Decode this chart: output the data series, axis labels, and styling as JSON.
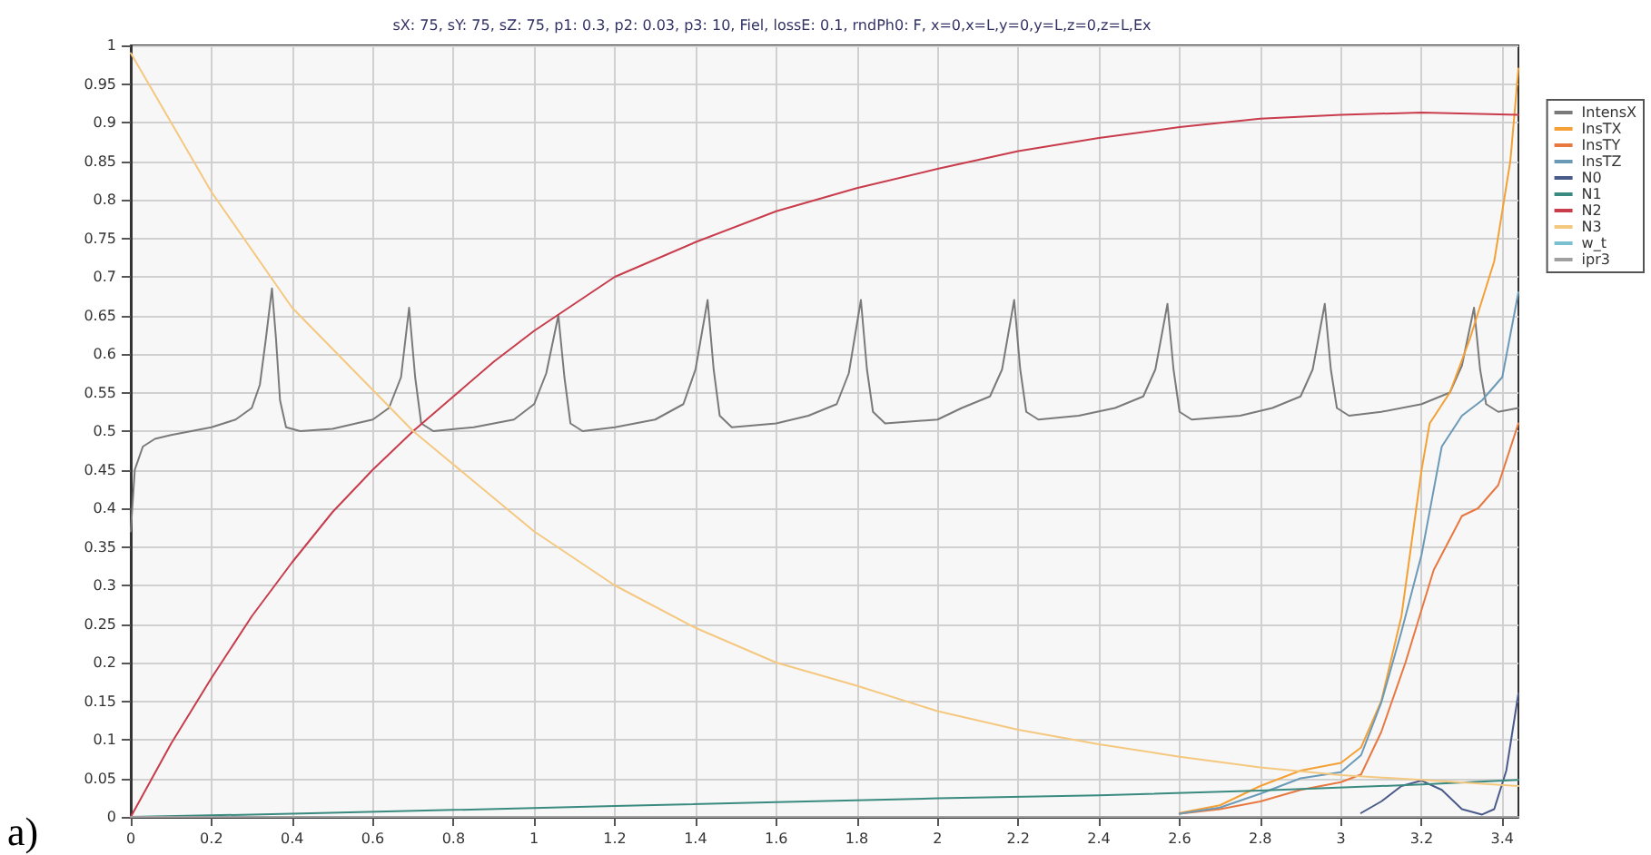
{
  "chart_data": {
    "type": "line",
    "title": "sX: 75, sY: 75, sZ: 75, p1: 0.3, p2: 0.03, p3: 10, Fiel, lossE: 0.1, rndPh0: F, x=0,x=L,y=0,y=L,z=0,z=L,Ex",
    "annotations": [
      "a)"
    ],
    "xlim": [
      0,
      3.44
    ],
    "ylim": [
      0,
      1
    ],
    "xticks": [
      0,
      0.2,
      0.4,
      0.6,
      0.8,
      1,
      1.2,
      1.4,
      1.6,
      1.8,
      2,
      2.2,
      2.4,
      2.6,
      2.8,
      3,
      3.2,
      3.4
    ],
    "yticks": [
      0,
      0.05,
      0.1,
      0.15,
      0.2,
      0.25,
      0.3,
      0.35,
      0.4,
      0.45,
      0.5,
      0.55,
      0.6,
      0.65,
      0.7,
      0.75,
      0.8,
      0.85,
      0.9,
      0.95,
      1
    ],
    "grid": true,
    "legend": "top right",
    "marker": "none",
    "line_style": "solid",
    "series": [
      {
        "name": "IntensX",
        "color": "#7a7a7a",
        "x": [
          0,
          0.01,
          0.03,
          0.06,
          0.1,
          0.2,
          0.26,
          0.3,
          0.32,
          0.335,
          0.35,
          0.36,
          0.37,
          0.385,
          0.42,
          0.5,
          0.6,
          0.64,
          0.67,
          0.69,
          0.705,
          0.72,
          0.75,
          0.85,
          0.95,
          1.0,
          1.03,
          1.06,
          1.075,
          1.09,
          1.12,
          1.2,
          1.3,
          1.37,
          1.4,
          1.43,
          1.445,
          1.46,
          1.49,
          1.6,
          1.68,
          1.75,
          1.78,
          1.81,
          1.825,
          1.84,
          1.87,
          2.0,
          2.06,
          2.13,
          2.16,
          2.19,
          2.205,
          2.22,
          2.25,
          2.35,
          2.44,
          2.51,
          2.54,
          2.57,
          2.585,
          2.6,
          2.63,
          2.75,
          2.83,
          2.9,
          2.93,
          2.96,
          2.975,
          2.99,
          3.02,
          3.1,
          3.2,
          3.27,
          3.3,
          3.33,
          3.345,
          3.36,
          3.39,
          3.44
        ],
        "values": [
          0.37,
          0.45,
          0.48,
          0.49,
          0.495,
          0.505,
          0.515,
          0.53,
          0.56,
          0.62,
          0.685,
          0.62,
          0.54,
          0.505,
          0.5,
          0.503,
          0.515,
          0.53,
          0.57,
          0.66,
          0.57,
          0.51,
          0.5,
          0.505,
          0.515,
          0.535,
          0.575,
          0.65,
          0.57,
          0.51,
          0.5,
          0.505,
          0.515,
          0.535,
          0.58,
          0.67,
          0.58,
          0.52,
          0.505,
          0.51,
          0.52,
          0.535,
          0.575,
          0.67,
          0.58,
          0.525,
          0.51,
          0.515,
          0.53,
          0.545,
          0.58,
          0.67,
          0.58,
          0.525,
          0.515,
          0.52,
          0.53,
          0.545,
          0.58,
          0.665,
          0.58,
          0.525,
          0.515,
          0.52,
          0.53,
          0.545,
          0.58,
          0.665,
          0.58,
          0.53,
          0.52,
          0.525,
          0.535,
          0.55,
          0.585,
          0.66,
          0.58,
          0.535,
          0.525,
          0.53
        ]
      },
      {
        "name": "InsTX",
        "color": "#f4a035",
        "x": [
          2.6,
          2.7,
          2.8,
          2.9,
          3.0,
          3.05,
          3.1,
          3.15,
          3.2,
          3.22,
          3.27,
          3.32,
          3.38,
          3.42,
          3.44
        ],
        "values": [
          0.005,
          0.015,
          0.04,
          0.06,
          0.07,
          0.09,
          0.15,
          0.26,
          0.45,
          0.51,
          0.55,
          0.62,
          0.72,
          0.85,
          0.97
        ]
      },
      {
        "name": "InsTY",
        "color": "#e87840",
        "x": [
          2.6,
          2.7,
          2.8,
          2.9,
          3.0,
          3.05,
          3.1,
          3.16,
          3.23,
          3.3,
          3.34,
          3.39,
          3.44
        ],
        "values": [
          0.004,
          0.01,
          0.02,
          0.035,
          0.045,
          0.055,
          0.11,
          0.2,
          0.32,
          0.39,
          0.4,
          0.43,
          0.51
        ]
      },
      {
        "name": "InsTZ",
        "color": "#6b9ab8",
        "x": [
          2.6,
          2.7,
          2.8,
          2.9,
          3.0,
          3.05,
          3.1,
          3.15,
          3.2,
          3.25,
          3.3,
          3.35,
          3.4,
          3.44
        ],
        "values": [
          0.004,
          0.012,
          0.03,
          0.05,
          0.058,
          0.08,
          0.148,
          0.24,
          0.34,
          0.48,
          0.52,
          0.54,
          0.57,
          0.68
        ]
      },
      {
        "name": "N0",
        "color": "#4a5a8a",
        "x": [
          3.05,
          3.1,
          3.15,
          3.2,
          3.25,
          3.3,
          3.35,
          3.38,
          3.41,
          3.44
        ],
        "values": [
          0.005,
          0.02,
          0.04,
          0.047,
          0.035,
          0.01,
          0.003,
          0.01,
          0.06,
          0.16
        ]
      },
      {
        "name": "N1",
        "color": "#3a8a80",
        "x": [
          0,
          0.4,
          0.8,
          1.2,
          1.6,
          2.0,
          2.4,
          2.8,
          3.2,
          3.44
        ],
        "values": [
          0,
          0.004,
          0.009,
          0.014,
          0.019,
          0.024,
          0.028,
          0.034,
          0.042,
          0.048
        ]
      },
      {
        "name": "N2",
        "color": "#c83c4c",
        "x": [
          0,
          0.1,
          0.2,
          0.3,
          0.4,
          0.5,
          0.6,
          0.7,
          0.8,
          0.9,
          1.0,
          1.2,
          1.4,
          1.6,
          1.8,
          2.0,
          2.2,
          2.4,
          2.6,
          2.8,
          3.0,
          3.2,
          3.44
        ],
        "values": [
          0,
          0.095,
          0.18,
          0.26,
          0.33,
          0.395,
          0.45,
          0.5,
          0.545,
          0.59,
          0.63,
          0.7,
          0.745,
          0.785,
          0.815,
          0.84,
          0.863,
          0.88,
          0.894,
          0.905,
          0.91,
          0.913,
          0.91
        ]
      },
      {
        "name": "N3",
        "color": "#f5c880",
        "x": [
          0,
          0.2,
          0.4,
          0.7,
          1.0,
          1.2,
          1.4,
          1.6,
          1.8,
          2.0,
          2.2,
          2.4,
          2.6,
          2.8,
          3.0,
          3.2,
          3.44
        ],
        "values": [
          0.99,
          0.81,
          0.66,
          0.5,
          0.37,
          0.3,
          0.245,
          0.2,
          0.17,
          0.137,
          0.113,
          0.094,
          0.078,
          0.064,
          0.054,
          0.048,
          0.04
        ]
      },
      {
        "name": "w_t",
        "color": "#7ac0d0"
      },
      {
        "name": "ipr3",
        "color": "#a0a0a0",
        "x": [
          0,
          3.44
        ],
        "values": [
          0,
          0
        ]
      }
    ]
  }
}
